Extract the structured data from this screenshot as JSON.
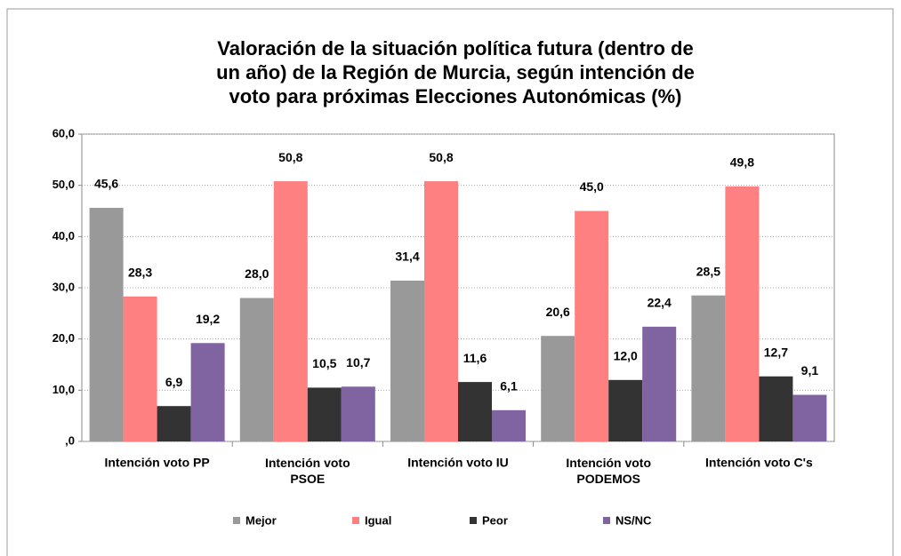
{
  "chart_data": {
    "type": "bar",
    "title": "Valoración de la situación política futura (dentro de un año) de la Región de Murcia, según intención de voto para próximas Elecciones Autonómicas (%)",
    "categories": [
      "Intención voto PP",
      "Intención voto PSOE",
      "Intención voto IU",
      "Intención voto PODEMOS",
      "Intención voto C's"
    ],
    "series": [
      {
        "name": "Mejor",
        "color": "#999999",
        "values": [
          45.6,
          28.0,
          31.4,
          20.6,
          28.5
        ],
        "value_labels": [
          "45,6",
          "28,0",
          "31,4",
          "20,6",
          "28,5"
        ]
      },
      {
        "name": "Igual",
        "color": "#ff8080",
        "values": [
          28.3,
          50.8,
          50.8,
          45.0,
          49.8
        ],
        "value_labels": [
          "28,3",
          "50,8",
          "50,8",
          "45,0",
          "49,8"
        ]
      },
      {
        "name": "Peor",
        "color": "#333333",
        "values": [
          6.9,
          10.5,
          11.6,
          12.0,
          12.7
        ],
        "value_labels": [
          "6,9",
          "10,5",
          "11,6",
          "12,0",
          "12,7"
        ]
      },
      {
        "name": "NS/NC",
        "color": "#8064a2",
        "values": [
          19.2,
          10.7,
          6.1,
          22.4,
          9.1
        ],
        "value_labels": [
          "19,2",
          "10,7",
          "6,1",
          "22,4",
          "9,1"
        ]
      }
    ],
    "ylim": [
      0,
      60
    ],
    "yticks": [
      {
        "value": 0,
        "label": ",0"
      },
      {
        "value": 10,
        "label": "10,0"
      },
      {
        "value": 20,
        "label": "20,0"
      },
      {
        "value": 30,
        "label": "30,0"
      },
      {
        "value": 40,
        "label": "40,0"
      },
      {
        "value": 50,
        "label": "50,0"
      },
      {
        "value": 60,
        "label": "60,0"
      }
    ],
    "grid": true,
    "legend": "bottom"
  }
}
